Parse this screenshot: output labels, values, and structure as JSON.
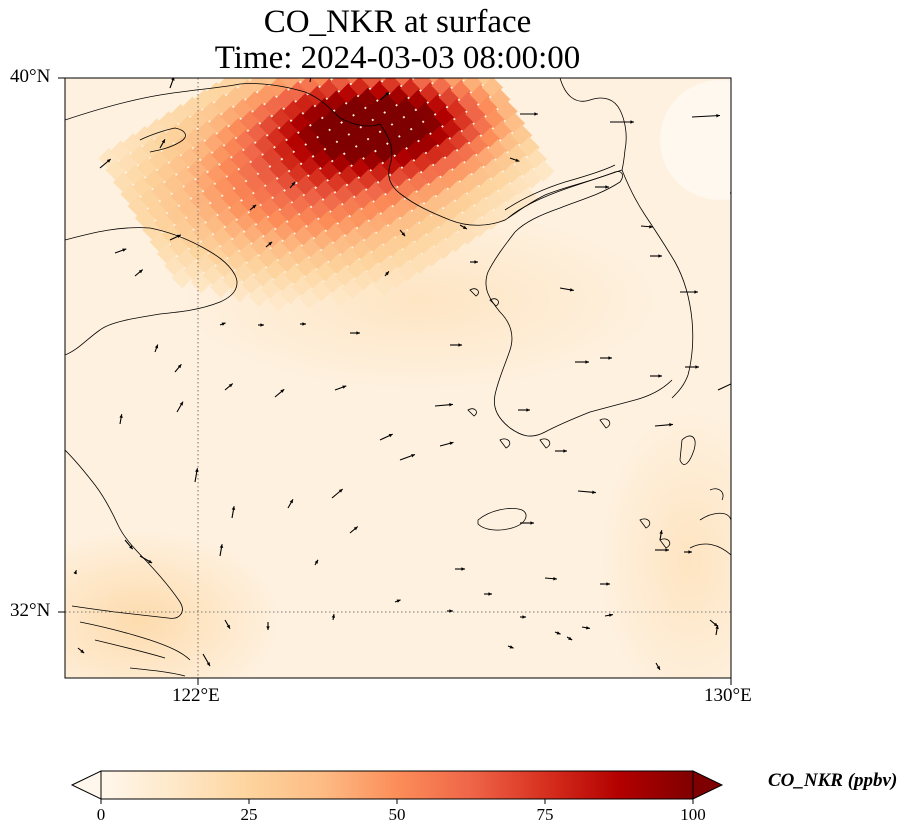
{
  "title": {
    "line1": "CO_NKR at surface",
    "line2": "Time: 2024-03-03 08:00:00"
  },
  "axes": {
    "lat_labels": [
      "40°N",
      "32°N"
    ],
    "lon_labels": [
      "122°E",
      "130°E"
    ],
    "lat_range": [
      31,
      40
    ],
    "lon_range": [
      120,
      130
    ],
    "gridlines": {
      "lat": 32,
      "lon": 122,
      "style": "dotted"
    }
  },
  "colorbar": {
    "label": "CO_NKR (ppbv)",
    "ticks": [
      "0",
      "25",
      "50",
      "75",
      "100"
    ],
    "range": [
      0,
      100
    ],
    "colormap": "OrRd",
    "colors": [
      "#fff7ec",
      "#fee8c8",
      "#fdd49e",
      "#fdbb84",
      "#fc8d59",
      "#ef6548",
      "#d7301f",
      "#b30000",
      "#7f0000"
    ],
    "extend": "both"
  },
  "legend_placement": "bottom",
  "map_features": [
    "coastlines",
    "wind-vectors",
    "concentration-field"
  ],
  "plume": {
    "description_level_max": 100,
    "region_lon": [
      123,
      126
    ],
    "region_lat": [
      37.3,
      40
    ]
  }
}
